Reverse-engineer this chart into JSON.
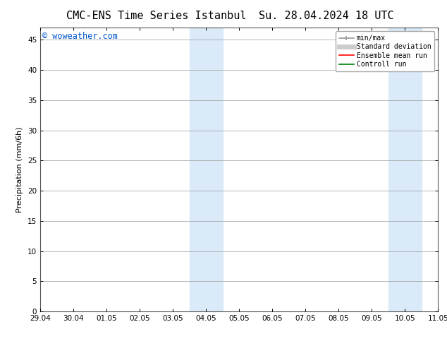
{
  "title_left": "CMC-ENS Time Series Istanbul",
  "title_right": "Su. 28.04.2024 18 UTC",
  "ylabel": "Precipitation (mm/6h)",
  "watermark": "© woweather.com",
  "watermark_color": "#0055cc",
  "xticklabels": [
    "29.04",
    "30.04",
    "01.05",
    "02.05",
    "03.05",
    "04.05",
    "05.05",
    "06.05",
    "07.05",
    "08.05",
    "09.05",
    "10.05",
    "11.05"
  ],
  "x_values": [
    0,
    1,
    2,
    3,
    4,
    5,
    6,
    7,
    8,
    9,
    10,
    11,
    12
  ],
  "ylim": [
    0,
    47
  ],
  "yticks": [
    0,
    5,
    10,
    15,
    20,
    25,
    30,
    35,
    40,
    45
  ],
  "shaded_regions": [
    {
      "xmin": 4.5,
      "xmax": 5.5,
      "color": "#daeaf8"
    },
    {
      "xmin": 10.5,
      "xmax": 11.5,
      "color": "#daeaf8"
    }
  ],
  "legend_entries": [
    {
      "label": "min/max",
      "color": "#999999",
      "lw": 1.2,
      "ls": "-"
    },
    {
      "label": "Standard deviation",
      "color": "#cccccc",
      "lw": 5,
      "ls": "-"
    },
    {
      "label": "Ensemble mean run",
      "color": "#ff0000",
      "lw": 1.2,
      "ls": "-"
    },
    {
      "label": "Controll run",
      "color": "#008000",
      "lw": 1.2,
      "ls": "-"
    }
  ],
  "bg_color": "#ffffff",
  "plot_bg_color": "#f5f5f5",
  "grid_color": "#999999",
  "spine_color": "#555555",
  "tick_color": "#000000",
  "title_fontsize": 11,
  "axis_label_fontsize": 8,
  "tick_fontsize": 7.5,
  "legend_fontsize": 7,
  "watermark_fontsize": 8.5
}
